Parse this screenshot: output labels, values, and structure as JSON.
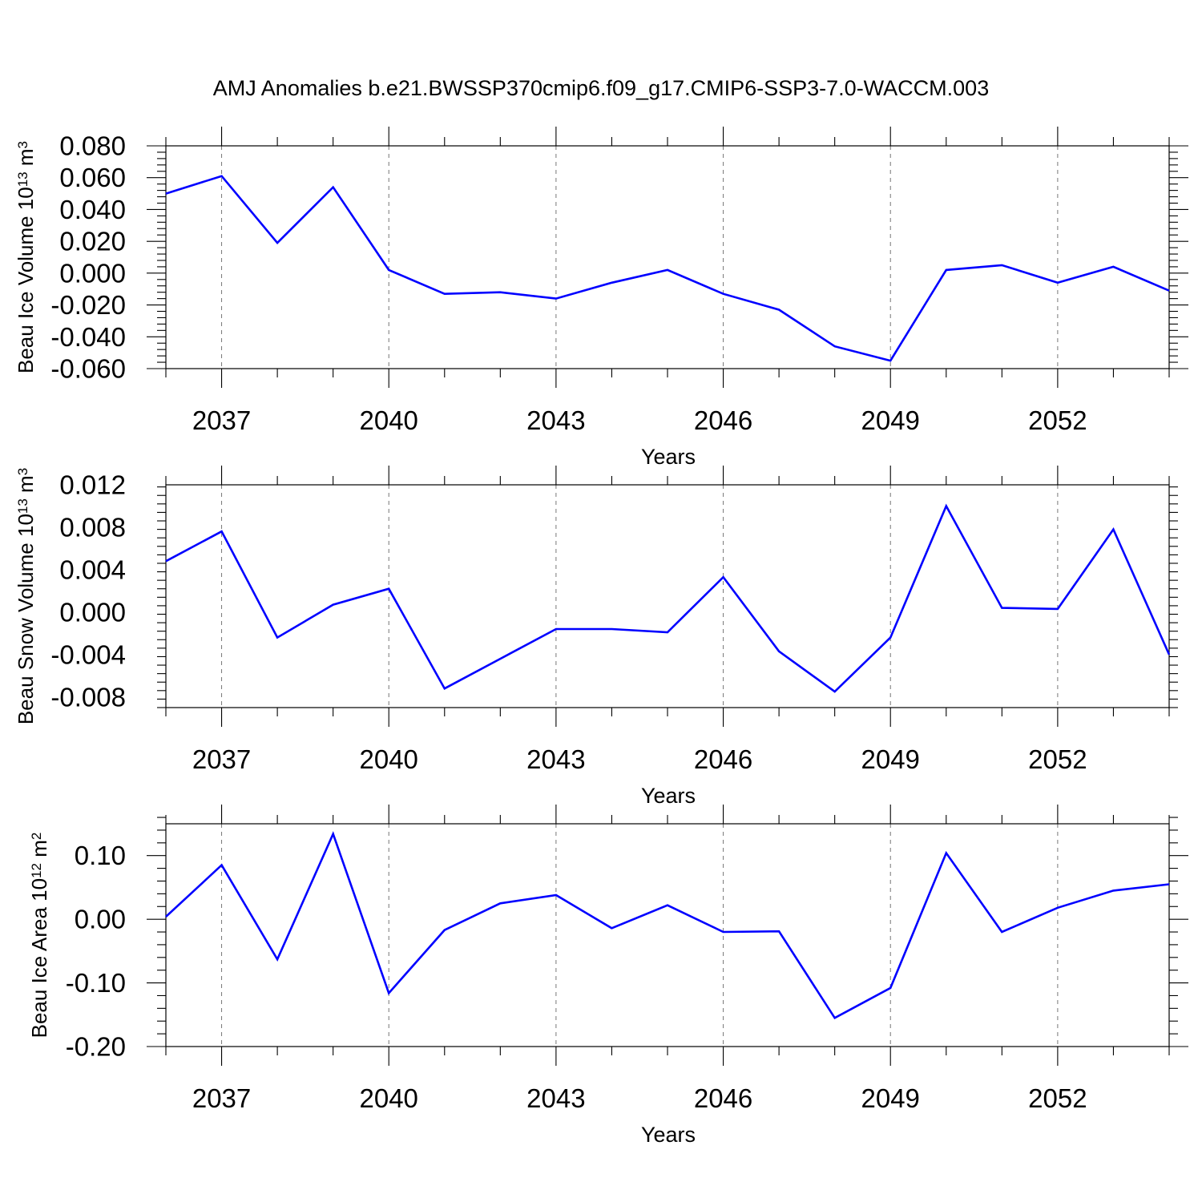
{
  "chart_data": {
    "title": "AMJ Anomalies b.e21.BWSSP370cmip6.f09_g17.CMIP6-SSP3-7.0-WACCM.003",
    "panels": [
      {
        "type": "line",
        "ylabel_parts": [
          "Beau Ice Volume 10",
          "13",
          " m",
          "3"
        ],
        "xlabel": "Years",
        "xlim": [
          2036,
          2054
        ],
        "ylim": [
          -0.06,
          0.08
        ],
        "yticks": [
          -0.06,
          -0.04,
          -0.02,
          0.0,
          0.02,
          0.04,
          0.06,
          0.08
        ],
        "ytick_labels": [
          "-0.060",
          "-0.040",
          "-0.020",
          "0.000",
          "0.020",
          "0.040",
          "0.060",
          "0.080"
        ],
        "xticks": [
          2037,
          2040,
          2043,
          2046,
          2049,
          2052
        ],
        "xtick_labels": [
          "2037",
          "2040",
          "2043",
          "2046",
          "2049",
          "2052"
        ],
        "grid": "vertical dashed at labeled years",
        "color": "#0000ff",
        "x": [
          2036,
          2037,
          2038,
          2039,
          2040,
          2041,
          2042,
          2043,
          2044,
          2045,
          2046,
          2047,
          2048,
          2049,
          2050,
          2051,
          2052,
          2053,
          2054
        ],
        "y": [
          0.05,
          0.061,
          0.019,
          0.054,
          0.002,
          -0.013,
          -0.012,
          -0.016,
          -0.006,
          0.002,
          -0.013,
          -0.023,
          -0.046,
          -0.055,
          0.002,
          0.005,
          -0.006,
          0.004,
          -0.011
        ]
      },
      {
        "type": "line",
        "ylabel_parts": [
          "Beau Snow Volume 10",
          "13",
          " m",
          "3"
        ],
        "xlabel": "Years",
        "xlim": [
          2036,
          2054
        ],
        "ylim": [
          -0.009,
          0.012
        ],
        "yticks": [
          -0.008,
          -0.004,
          0.0,
          0.004,
          0.008,
          0.012
        ],
        "ytick_labels": [
          "-0.008",
          "-0.004",
          "0.000",
          "0.004",
          "0.008",
          "0.012"
        ],
        "xticks": [
          2037,
          2040,
          2043,
          2046,
          2049,
          2052
        ],
        "xtick_labels": [
          "2037",
          "2040",
          "2043",
          "2046",
          "2049",
          "2052"
        ],
        "grid": "vertical dashed at labeled years",
        "color": "#0000ff",
        "x": [
          2036,
          2037,
          2038,
          2039,
          2040,
          2041,
          2042,
          2043,
          2044,
          2045,
          2046,
          2047,
          2048,
          2049,
          2050,
          2051,
          2052,
          2053,
          2054
        ],
        "y": [
          0.0048,
          0.0076,
          -0.0024,
          0.0007,
          0.0022,
          -0.0072,
          -0.0044,
          -0.0016,
          -0.0016,
          -0.0019,
          0.0033,
          -0.0037,
          -0.0075,
          -0.0024,
          0.01,
          0.0004,
          0.0003,
          0.0078,
          -0.004
        ]
      },
      {
        "type": "line",
        "ylabel_parts": [
          "Beau Ice Area 10",
          "12",
          " m",
          "2"
        ],
        "xlabel": "Years",
        "xlim": [
          2036,
          2054
        ],
        "ylim": [
          -0.2,
          0.15
        ],
        "yticks": [
          -0.2,
          -0.1,
          0.0,
          0.1
        ],
        "ytick_labels": [
          "-0.20",
          "-0.10",
          "0.00",
          "0.10"
        ],
        "xticks": [
          2037,
          2040,
          2043,
          2046,
          2049,
          2052
        ],
        "xtick_labels": [
          "2037",
          "2040",
          "2043",
          "2046",
          "2049",
          "2052"
        ],
        "grid": "vertical dashed at labeled years",
        "color": "#0000ff",
        "x": [
          2036,
          2037,
          2038,
          2039,
          2040,
          2041,
          2042,
          2043,
          2044,
          2045,
          2046,
          2047,
          2048,
          2049,
          2050,
          2051,
          2052,
          2053,
          2054
        ],
        "y": [
          0.004,
          0.085,
          -0.063,
          0.134,
          -0.116,
          -0.017,
          0.025,
          0.038,
          -0.014,
          0.022,
          -0.02,
          -0.019,
          -0.155,
          -0.108,
          0.104,
          -0.02,
          0.018,
          0.045,
          0.055
        ]
      }
    ]
  }
}
